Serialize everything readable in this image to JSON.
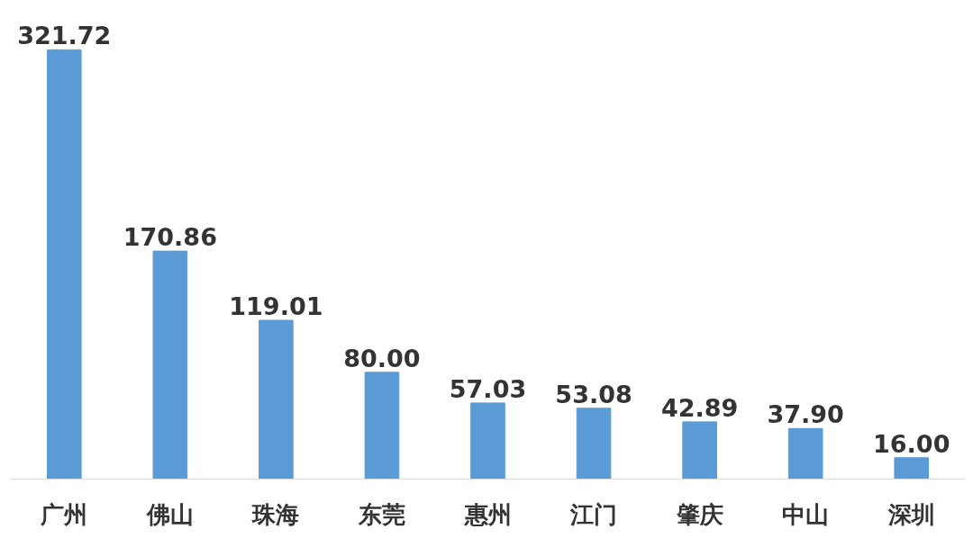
{
  "chart_data": {
    "type": "bar",
    "categories": [
      "广州",
      "佛山",
      "珠海",
      "东莞",
      "惠州",
      "江门",
      "肇庆",
      "中山",
      "深圳"
    ],
    "values": [
      321.72,
      170.86,
      119.01,
      80.0,
      57.03,
      53.08,
      42.89,
      37.9,
      16.0
    ],
    "value_labels": [
      "321.72",
      "170.86",
      "119.01",
      "80.00",
      "57.03",
      "53.08",
      "42.89",
      "37.90",
      "16.00"
    ],
    "color": "#5b9bd5"
  }
}
